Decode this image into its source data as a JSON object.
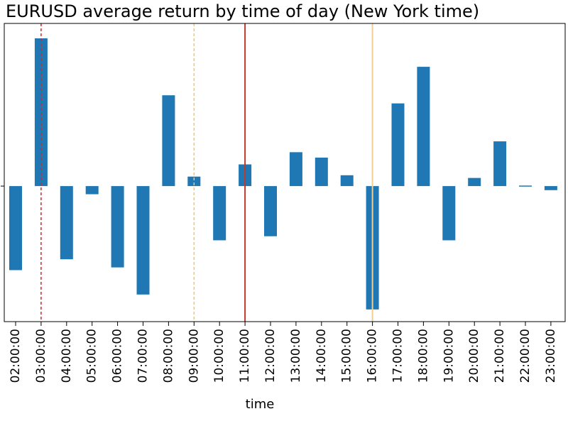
{
  "chart_data": {
    "type": "bar",
    "title": "EURUSD average return by time of day (New York time)",
    "xlabel": "time",
    "ylabel": "",
    "categories": [
      "02:00:00",
      "03:00:00",
      "04:00:00",
      "05:00:00",
      "06:00:00",
      "07:00:00",
      "08:00:00",
      "09:00:00",
      "10:00:00",
      "11:00:00",
      "12:00:00",
      "13:00:00",
      "14:00:00",
      "15:00:00",
      "16:00:00",
      "17:00:00",
      "18:00:00",
      "19:00:00",
      "20:00:00",
      "21:00:00",
      "22:00:00",
      "23:00:00"
    ],
    "values": [
      -0.62,
      1.09,
      -0.54,
      -0.06,
      -0.6,
      -0.8,
      0.67,
      0.07,
      -0.4,
      0.16,
      -0.37,
      0.25,
      0.21,
      0.08,
      -0.91,
      0.61,
      0.88,
      -0.4,
      0.06,
      0.33,
      0.005,
      -0.03
    ],
    "ylim": [
      -1.0,
      1.2
    ],
    "grid": false,
    "bar_color": "#1f77b4",
    "vlines": [
      {
        "category": "03:00:00",
        "color": "#d62728",
        "style": "dashed"
      },
      {
        "category": "09:00:00",
        "color": "#f5c56b",
        "style": "dashed"
      },
      {
        "category": "11:00:00",
        "color": "#c0392b",
        "style": "solid"
      },
      {
        "category": "16:00:00",
        "color": "#f0d090",
        "style": "solid"
      }
    ]
  }
}
